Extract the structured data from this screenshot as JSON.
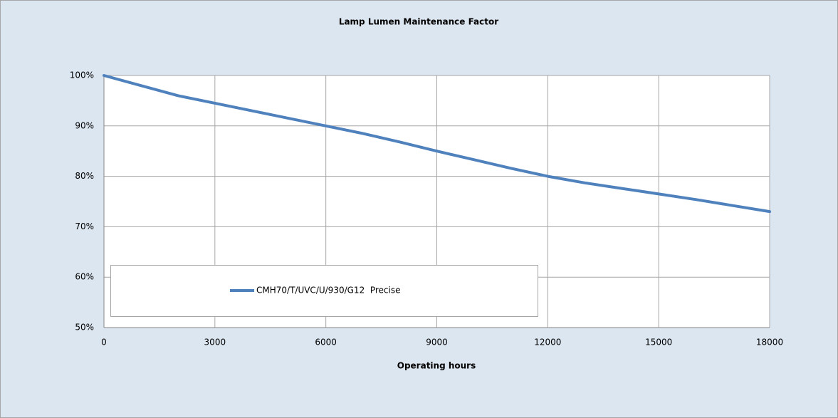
{
  "chart_data": {
    "type": "line",
    "title": "Lamp Lumen Maintenance Factor",
    "x_label": "Operating hours",
    "x": [
      0,
      1000,
      2000,
      3000,
      4000,
      5000,
      6000,
      7000,
      8000,
      9000,
      10000,
      11000,
      12000,
      13000,
      14000,
      15000,
      16000,
      17000,
      18000
    ],
    "series": [
      {
        "name": "CMH70/T/UVC/U/930/G12  Precise",
        "color": "#4f81bd",
        "values": [
          100,
          98,
          96,
          94.5,
          93,
          91.5,
          90,
          88.5,
          86.8,
          85,
          83.3,
          81.6,
          80,
          78.7,
          77.6,
          76.5,
          75.4,
          74.2,
          73
        ]
      }
    ],
    "xlim": [
      0,
      18000
    ],
    "xticks": [
      0,
      3000,
      6000,
      9000,
      12000,
      15000,
      18000
    ],
    "ylim": [
      50,
      100
    ],
    "yticks": [
      {
        "value": 50,
        "label": "50%"
      },
      {
        "value": 60,
        "label": "60%"
      },
      {
        "value": 70,
        "label": "70%"
      },
      {
        "value": 80,
        "label": "80%"
      },
      {
        "value": 90,
        "label": "90%"
      },
      {
        "value": 100,
        "label": "100%"
      }
    ],
    "grid": true
  }
}
